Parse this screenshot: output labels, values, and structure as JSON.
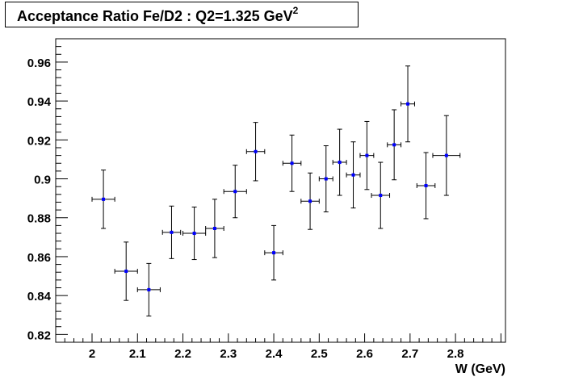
{
  "title": {
    "main": "Acceptance Ratio Fe/D2 : Q2=1.325 GeV",
    "superscript": "2"
  },
  "chart_data": {
    "type": "scatter",
    "title": "Acceptance Ratio Fe/D2 : Q2=1.325 GeV^2",
    "xlabel": "W (GeV)",
    "ylabel": "",
    "xlim": [
      1.92,
      2.91
    ],
    "ylim": [
      0.816,
      0.972
    ],
    "x_ticks": [
      2.0,
      2.1,
      2.2,
      2.3,
      2.4,
      2.5,
      2.6,
      2.7,
      2.8
    ],
    "x_tick_labels": [
      "2",
      "2.1",
      "2.2",
      "2.3",
      "2.4",
      "2.5",
      "2.6",
      "2.7",
      "2.8"
    ],
    "y_ticks": [
      0.82,
      0.84,
      0.86,
      0.88,
      0.9,
      0.92,
      0.94,
      0.96
    ],
    "y_tick_labels": [
      "0.82",
      "0.84",
      "0.86",
      "0.88",
      "0.9",
      "0.92",
      "0.94",
      "0.96"
    ],
    "grid": false,
    "marker_color": "#0000ff",
    "errorbar_color": "#000000",
    "points": [
      {
        "x": 2.025,
        "y": 0.8895,
        "xerr": 0.025,
        "yerr": 0.015
      },
      {
        "x": 2.075,
        "y": 0.8525,
        "xerr": 0.025,
        "yerr": 0.015
      },
      {
        "x": 2.125,
        "y": 0.843,
        "xerr": 0.025,
        "yerr": 0.0135
      },
      {
        "x": 2.175,
        "y": 0.8725,
        "xerr": 0.02,
        "yerr": 0.0135
      },
      {
        "x": 2.225,
        "y": 0.872,
        "xerr": 0.025,
        "yerr": 0.0135
      },
      {
        "x": 2.27,
        "y": 0.8745,
        "xerr": 0.02,
        "yerr": 0.015
      },
      {
        "x": 2.315,
        "y": 0.8935,
        "xerr": 0.025,
        "yerr": 0.0135
      },
      {
        "x": 2.36,
        "y": 0.914,
        "xerr": 0.02,
        "yerr": 0.015
      },
      {
        "x": 2.4,
        "y": 0.862,
        "xerr": 0.02,
        "yerr": 0.014
      },
      {
        "x": 2.44,
        "y": 0.908,
        "xerr": 0.02,
        "yerr": 0.0145
      },
      {
        "x": 2.48,
        "y": 0.8885,
        "xerr": 0.02,
        "yerr": 0.0145
      },
      {
        "x": 2.515,
        "y": 0.9,
        "xerr": 0.015,
        "yerr": 0.017
      },
      {
        "x": 2.545,
        "y": 0.9085,
        "xerr": 0.015,
        "yerr": 0.017
      },
      {
        "x": 2.575,
        "y": 0.902,
        "xerr": 0.015,
        "yerr": 0.017
      },
      {
        "x": 2.605,
        "y": 0.912,
        "xerr": 0.015,
        "yerr": 0.0175
      },
      {
        "x": 2.635,
        "y": 0.8915,
        "xerr": 0.02,
        "yerr": 0.017
      },
      {
        "x": 2.665,
        "y": 0.9175,
        "xerr": 0.015,
        "yerr": 0.018
      },
      {
        "x": 2.695,
        "y": 0.9385,
        "xerr": 0.015,
        "yerr": 0.0195
      },
      {
        "x": 2.735,
        "y": 0.8965,
        "xerr": 0.02,
        "yerr": 0.017
      },
      {
        "x": 2.78,
        "y": 0.912,
        "xerr": 0.03,
        "yerr": 0.0205
      }
    ]
  }
}
